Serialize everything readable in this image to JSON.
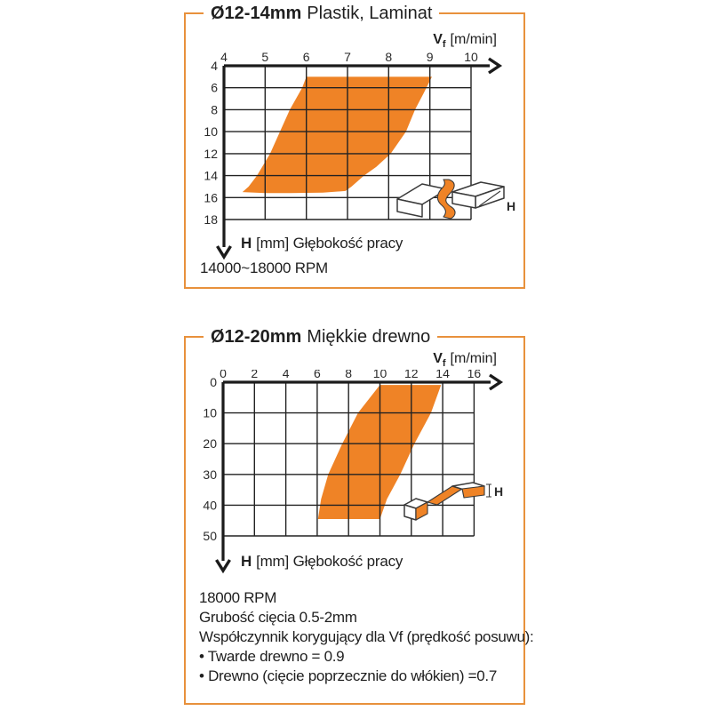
{
  "page": {
    "background": "#ffffff",
    "panel_border_color": "#e8913c",
    "accent_orange": "#ef8326"
  },
  "chart_data": [
    {
      "type": "area",
      "title_bold": "Ø12-14mm",
      "title_rest": "Plastik, Laminat",
      "x_axis_label": {
        "main": "V",
        "sub": "f",
        "unit": "[m/min]"
      },
      "y_axis_label": {
        "bold": "H",
        "rest": "[mm] Głębokość pracy"
      },
      "x_ticks": [
        4,
        5,
        6,
        7,
        8,
        9,
        10
      ],
      "y_ticks": [
        4,
        6,
        8,
        10,
        12,
        14,
        16,
        18
      ],
      "xlim": [
        4,
        10
      ],
      "ylim": [
        4,
        18
      ],
      "region_color": "#ef8326",
      "region_description": "recommended operating window: feed speed Vf vs working depth H",
      "region": [
        [
          6.0,
          5.0
        ],
        [
          9.05,
          5.0
        ],
        [
          8.85,
          6.5
        ],
        [
          8.64,
          8.0
        ],
        [
          8.42,
          10.0
        ],
        [
          8.05,
          12.0
        ],
        [
          7.7,
          13.2
        ],
        [
          7.4,
          14.0
        ],
        [
          7.1,
          15.0
        ],
        [
          6.95,
          15.4
        ],
        [
          6.4,
          15.55
        ],
        [
          5.6,
          15.6
        ],
        [
          5.0,
          15.6
        ],
        [
          4.45,
          15.5
        ],
        [
          4.6,
          15.0
        ],
        [
          4.8,
          14.0
        ],
        [
          5.12,
          12.0
        ],
        [
          5.36,
          10.0
        ],
        [
          5.6,
          8.0
        ],
        [
          5.9,
          6.0
        ]
      ],
      "icon_label": "H",
      "notes": [
        "14000~18000 RPM"
      ]
    },
    {
      "type": "area",
      "title_bold": "Ø12-20mm",
      "title_rest": "Miękkie drewno",
      "x_axis_label": {
        "main": "V",
        "sub": "f",
        "unit": "[m/min]"
      },
      "y_axis_label": {
        "bold": "H",
        "rest": "[mm] Głębokość pracy"
      },
      "x_ticks": [
        0,
        2,
        4,
        6,
        8,
        10,
        12,
        14,
        16
      ],
      "y_ticks": [
        0,
        10,
        20,
        30,
        40,
        50
      ],
      "xlim": [
        0,
        16
      ],
      "ylim": [
        0,
        50
      ],
      "region_color": "#ef8326",
      "region_description": "recommended operating window: feed speed Vf vs working depth H",
      "region": [
        [
          10.0,
          0.9
        ],
        [
          13.9,
          0.9
        ],
        [
          13.25,
          10
        ],
        [
          12.2,
          20
        ],
        [
          11.3,
          30
        ],
        [
          10.45,
          38
        ],
        [
          10.0,
          44.5
        ],
        [
          6.05,
          44.5
        ],
        [
          6.25,
          38
        ],
        [
          6.7,
          30
        ],
        [
          7.6,
          20
        ],
        [
          8.6,
          10
        ]
      ],
      "icon_label": "H",
      "notes": [
        "18000 RPM",
        "Grubość cięcia 0.5-2mm",
        "Współczynnik korygujący dla Vf (prędkość posuwu):",
        "• Twarde drewno = 0.9",
        "• Drewno (cięcie poprzecznie do włókien) =0.7"
      ]
    }
  ]
}
